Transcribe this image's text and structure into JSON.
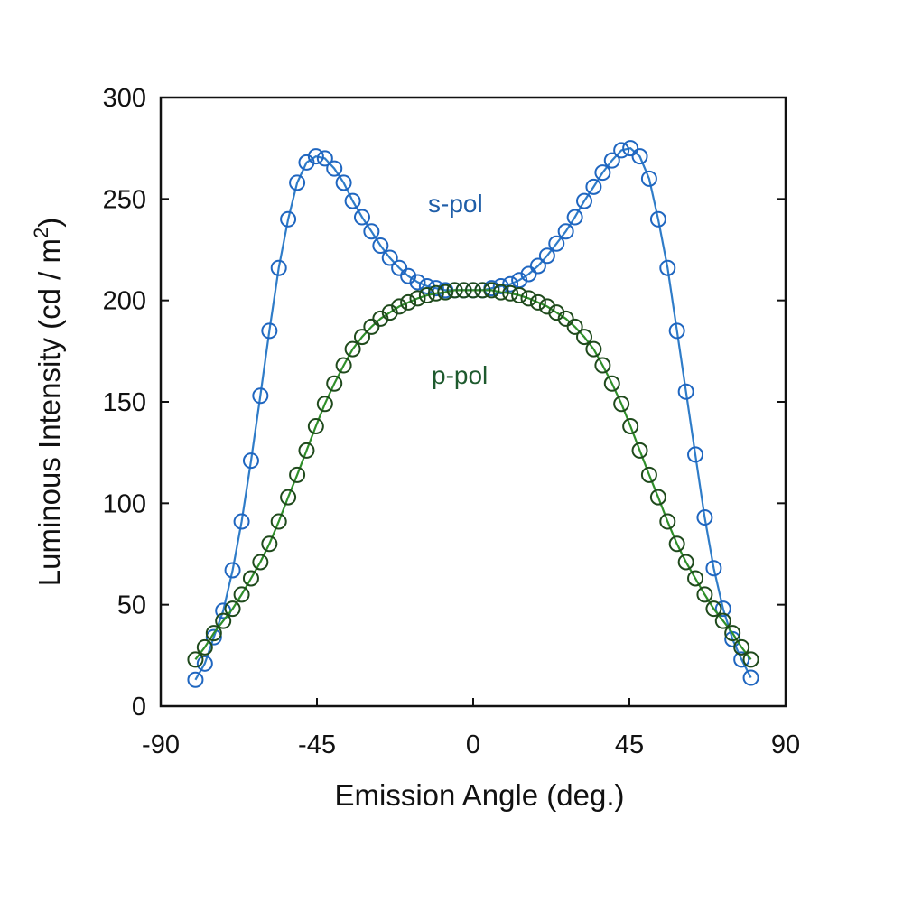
{
  "chart_data": {
    "type": "line",
    "xlabel": "Emission Angle (deg.)",
    "ylabel": "Luminous Intensity (cd / m",
    "ylabel_sup": "2",
    "ylabel_end": ")",
    "xlim": [
      -90,
      90
    ],
    "ylim": [
      0,
      300
    ],
    "xticks": [
      -90,
      -45,
      0,
      45,
      90
    ],
    "xtick_labels": [
      "-90",
      "-45",
      "0",
      "45",
      "90"
    ],
    "yticks": [
      0,
      50,
      100,
      150,
      200,
      250,
      300
    ],
    "ytick_labels": [
      "0",
      "50",
      "100",
      "150",
      "200",
      "250",
      "300"
    ],
    "grid": false,
    "legend": "none",
    "x": [
      -80,
      -77.3,
      -74.7,
      -72,
      -69.3,
      -66.7,
      -64,
      -61.3,
      -58.7,
      -56,
      -53.3,
      -50.7,
      -48,
      -45.3,
      -42.7,
      -40,
      -37.3,
      -34.7,
      -32,
      -29.3,
      -26.7,
      -24,
      -21.3,
      -18.7,
      -16,
      -13.3,
      -10.7,
      -8,
      -5.3,
      -2.7,
      0,
      2.7,
      5.3,
      8,
      10.7,
      13.3,
      16,
      18.7,
      21.3,
      24,
      26.7,
      29.3,
      32,
      34.7,
      37.3,
      40,
      42.7,
      45.3,
      48,
      50.7,
      53.3,
      56,
      58.7,
      61.3,
      64,
      66.7,
      69.3,
      72,
      74.7,
      77.3,
      80
    ],
    "series": [
      {
        "name": "s-pol",
        "marker_color": "#1f66c0",
        "line_color": "#2f7cc8",
        "label_color": "#1f5ea8",
        "values": [
          13,
          21,
          34,
          47,
          67,
          91,
          121,
          153,
          185,
          216,
          240,
          258,
          268,
          271,
          270,
          265,
          258,
          249,
          241,
          234,
          227,
          221,
          216,
          212,
          209,
          207,
          206,
          205,
          205,
          205,
          205,
          205,
          206,
          207,
          208,
          210,
          213,
          217,
          222,
          228,
          234,
          241,
          249,
          256,
          263,
          269,
          274,
          275,
          271,
          260,
          240,
          216,
          185,
          155,
          124,
          93,
          68,
          48,
          33,
          23,
          14
        ]
      },
      {
        "name": "p-pol",
        "marker_color": "#1f4a1c",
        "line_color": "#2f8f2a",
        "label_color": "#1e5a2e",
        "values": [
          23,
          29,
          36,
          42,
          48,
          55,
          63,
          71,
          80,
          91,
          103,
          114,
          126,
          138,
          149,
          159,
          168,
          176,
          182,
          187,
          191,
          194,
          197,
          199,
          201,
          202.5,
          203.5,
          204,
          205,
          205,
          205,
          205,
          205,
          204,
          203.5,
          202.5,
          201,
          199,
          197,
          194,
          191,
          187,
          182,
          176,
          168,
          159,
          149,
          138,
          126,
          114,
          103,
          91,
          80,
          71,
          63,
          55,
          48,
          42,
          36,
          29,
          23
        ]
      }
    ]
  }
}
